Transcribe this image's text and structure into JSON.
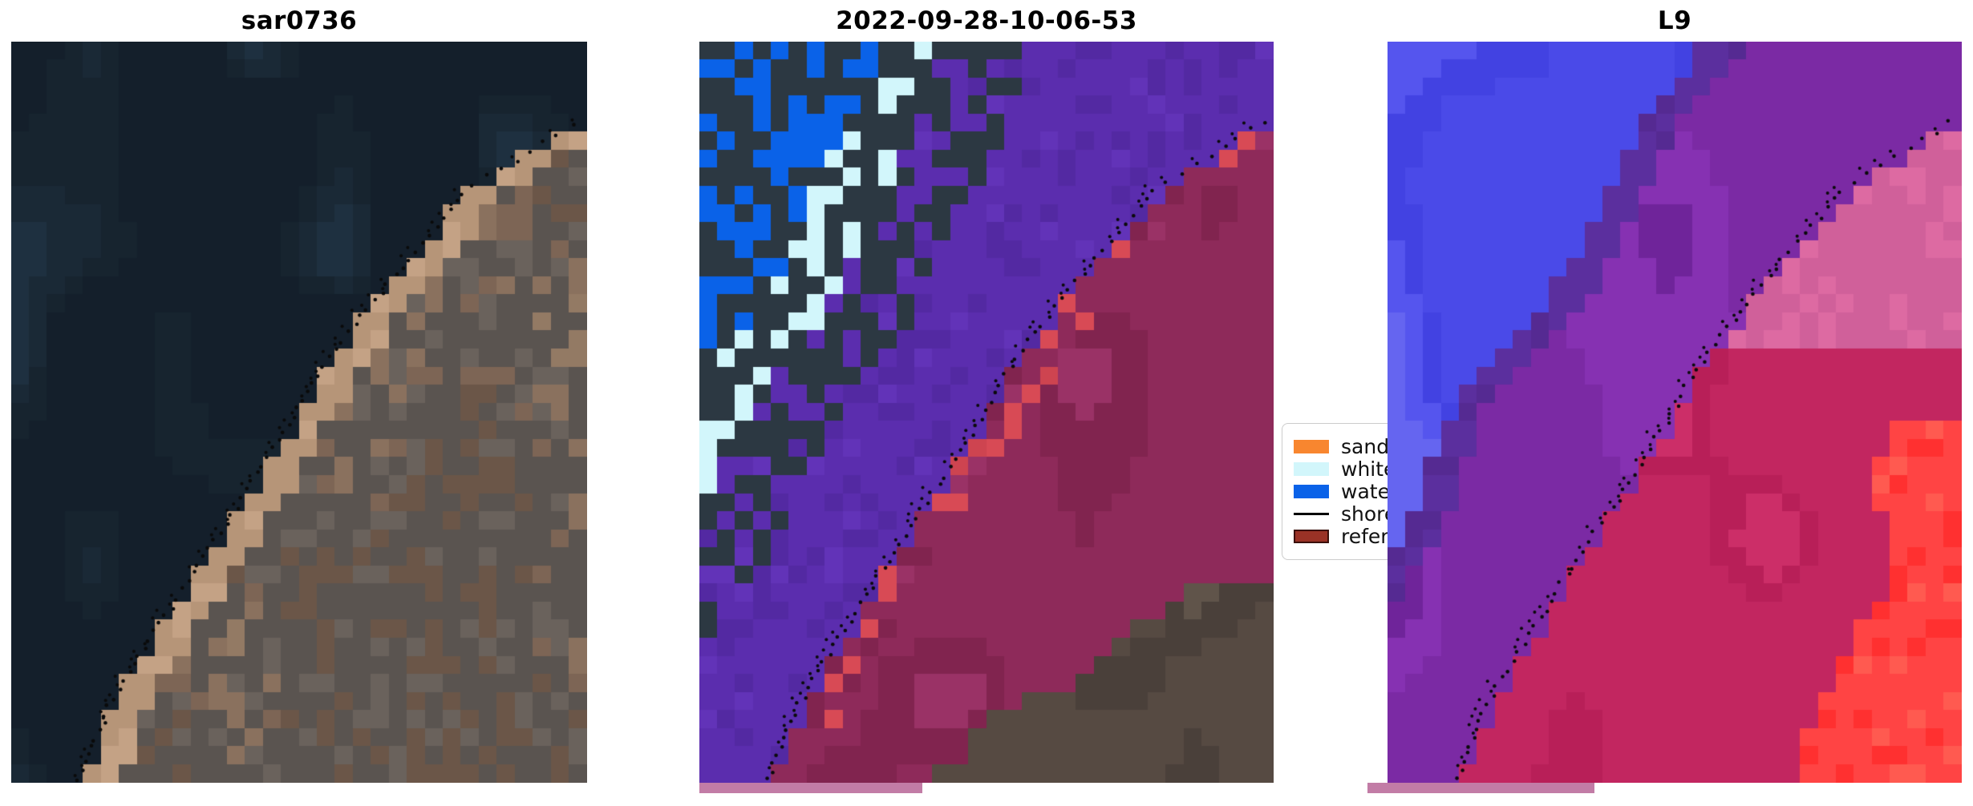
{
  "figure": {
    "background": "#ffffff",
    "panels": [
      {
        "title": "sar0736",
        "kind": "true-color satellite image, clouds over coastal mountains, dotted detected shoreline",
        "palette": {
          "ocean": [
            "#141f2b",
            "#17242f",
            "#1a2936",
            "#1e3040",
            "#223844",
            "#2a444c",
            "#2d4f52",
            "#355a58"
          ],
          "cloud": [
            "#eef1f2",
            "#e4e9ea",
            "#d5dde0",
            "#f2f1ea",
            "#c9d3d8",
            "#dfe6e2"
          ],
          "cloud_mid": [
            "#9fb0b9",
            "#8a9da8",
            "#75909c",
            "#5f7c8a",
            "#a8b6bd"
          ],
          "land": [
            "#6b5648",
            "#7d6555",
            "#8a715e",
            "#937a64",
            "#5d4c42",
            "#a08570",
            "#6e6258",
            "#857061"
          ],
          "land_grey": [
            "#5a5450",
            "#6a625c",
            "#4e4a46",
            "#75695f"
          ],
          "sand": [
            "#b69578",
            "#c4a285",
            "#ab8b6f",
            "#bfa183"
          ],
          "dot": "#0a0a0a"
        }
      },
      {
        "title": "2022-09-28-10-06-53",
        "kind": "pixel classification map with class colors and shoreline overlays",
        "palette": {
          "water": "#0a62e8",
          "whitewater": "#d2f6fb",
          "dark": "#2c3842",
          "indigo": [
            "#5b2dae",
            "#5329a2",
            "#6233b8",
            "#4f27a0",
            "#5836b0"
          ],
          "mauve": [
            "#b077a8",
            "#a96fa2",
            "#b87fb0",
            "#a36a9c",
            "#b183ae"
          ],
          "red": [
            "#d84a55",
            "#ce4450",
            "#c23e4a",
            "#e0545e"
          ],
          "reference": [
            "#8e2a5a",
            "#81244f",
            "#9a3266",
            "#762045",
            "#a03a6e",
            "#6b1f4e"
          ],
          "ground": [
            "#564a42",
            "#4a403a",
            "#60544a",
            "#3f3733",
            "#554c44",
            "#635750"
          ],
          "dot": "#0a0a0a"
        }
      },
      {
        "title": "L9",
        "kind": "false-color Landsat 9 image, dotted detected shoreline",
        "palette": {
          "blue": [
            "#4a4ae8",
            "#4242e2",
            "#5555ee",
            "#6565f0",
            "#3a3af0",
            "#5050e8",
            "#4646da"
          ],
          "blue_light": [
            "#9a9cf6",
            "#b8baf8",
            "#8486f2"
          ],
          "purple": [
            "#7b2aa4",
            "#8631b2",
            "#6f249a",
            "#8a3da6",
            "#7e35a8"
          ],
          "purple_dark": [
            "#5b2f9e",
            "#552a92",
            "#62359e",
            "#5a2277"
          ],
          "rose": [
            "#d0609a",
            "#dd6aa2",
            "#c75490",
            "#d55e96"
          ],
          "crimson": [
            "#c22660",
            "#b81f58",
            "#cc2e68",
            "#ae1a50",
            "#c93067",
            "#d6336e"
          ],
          "red": [
            "#ff4444",
            "#ff5a50",
            "#ff3030",
            "#ff7a6a",
            "#ff6055",
            "#f63c3c"
          ],
          "dot": "#0a0a0a"
        }
      }
    ],
    "legend": {
      "items": [
        {
          "label": "sand",
          "type": "patch",
          "color": "#f8862f"
        },
        {
          "label": "whitewater",
          "type": "patch",
          "color": "#d2f6fb"
        },
        {
          "label": "water",
          "type": "patch",
          "color": "#0a62e8"
        },
        {
          "label": "shoreline",
          "type": "line",
          "color": "#000000"
        },
        {
          "label": "reference shoreline",
          "type": "patch",
          "color": "#9a3226",
          "border": "#3a0f0a"
        }
      ]
    },
    "strip_color": "#c27ca6"
  },
  "chart_data": {
    "type": "heatmap",
    "note": "three-subplot satellite shoreline-detection figure; no numeric axes, image panels only",
    "panels": [
      {
        "title": "sar0736",
        "content": "true-color scene: dark ocean upper-left, white clouds, brown coastal terrain lower-right, black dotted detected shoreline along the diagonal coast"
      },
      {
        "title": "2022-09-28-10-06-53",
        "content": "classified scene: water (blue) top-left corner, whitewater (pale cyan) band, other land (purple/mauve), sand-line (red) along coast, reference shoreline region (dark maroon), unclassified ground (grey-brown) bottom-right corner, black dotted detected shoreline"
      },
      {
        "title": "L9",
        "content": "false-color scene: blue water top-left, purple coastal band, rose/crimson terrain, bright red ridge bottom-right, black dotted detected shoreline"
      }
    ],
    "legend_entries": [
      "sand",
      "whitewater",
      "water",
      "shoreline",
      "reference shoreline"
    ],
    "legend_position": "center, between second and third panel, clipped by third panel"
  }
}
